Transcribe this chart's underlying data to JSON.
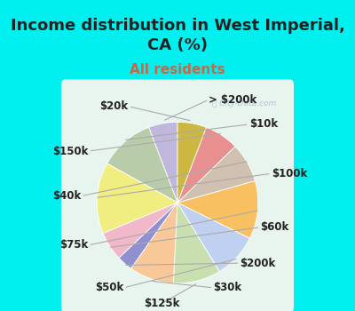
{
  "title": "Income distribution in West Imperial,\nCA (%)",
  "subtitle": "All residents",
  "labels": [
    "> $200k",
    "$10k",
    "$100k",
    "$60k",
    "$200k",
    "$30k",
    "$125k",
    "$50k",
    "$75k",
    "$40k",
    "$150k",
    "$20k"
  ],
  "values": [
    5.5,
    10.5,
    13.5,
    5.5,
    3.0,
    8.5,
    9.0,
    8.5,
    11.0,
    7.5,
    6.5,
    5.5
  ],
  "colors": [
    "#c0b8dc",
    "#b8ccaa",
    "#f0ee80",
    "#f0b8c8",
    "#9090d0",
    "#f8c898",
    "#c8e0b0",
    "#c0d0f0",
    "#f8c060",
    "#d0c0b0",
    "#e89090",
    "#ccb840"
  ],
  "bg_cyan": "#00f0f0",
  "bg_panel": "#e8f5ee",
  "title_color": "#222222",
  "subtitle_color": "#cc6644",
  "label_color": "#222222",
  "title_fontsize": 13,
  "subtitle_fontsize": 11,
  "label_fontsize": 8.5,
  "watermark": "Ⓜ City-Data.com",
  "watermark_color": "#aabbcc",
  "startangle": 90
}
